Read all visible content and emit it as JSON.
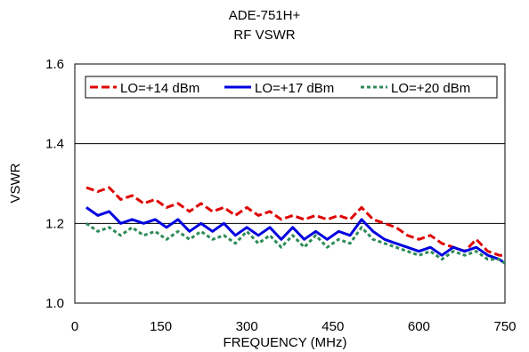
{
  "chart_data": {
    "type": "line",
    "title": "ADE-751H+",
    "subtitle": "RF VSWR",
    "xlabel": "FREQUENCY (MHz)",
    "ylabel": "VSWR",
    "xlim": [
      0,
      750
    ],
    "ylim": [
      1.0,
      1.6
    ],
    "xticks": [
      0,
      150,
      300,
      450,
      600,
      750
    ],
    "yticks": [
      1.0,
      1.2,
      1.4,
      1.6
    ],
    "xtick_labels": [
      "0",
      "150",
      "300",
      "450",
      "600",
      "750"
    ],
    "ytick_labels": [
      "1.0",
      "1.2",
      "1.4",
      "1.6"
    ],
    "grid": "horizontal",
    "legend_position": "top",
    "x": [
      20,
      40,
      60,
      80,
      100,
      120,
      140,
      160,
      180,
      200,
      220,
      240,
      260,
      280,
      300,
      320,
      340,
      360,
      380,
      400,
      420,
      440,
      460,
      480,
      500,
      520,
      540,
      560,
      580,
      600,
      620,
      640,
      660,
      680,
      700,
      720,
      740,
      750
    ],
    "series": [
      {
        "name": "LO=+14 dBm",
        "color": "#e00000",
        "dash": "dashed",
        "values": [
          1.29,
          1.28,
          1.29,
          1.26,
          1.27,
          1.25,
          1.26,
          1.24,
          1.25,
          1.23,
          1.25,
          1.23,
          1.24,
          1.22,
          1.24,
          1.22,
          1.23,
          1.21,
          1.22,
          1.21,
          1.22,
          1.21,
          1.22,
          1.21,
          1.24,
          1.21,
          1.2,
          1.19,
          1.17,
          1.16,
          1.17,
          1.15,
          1.14,
          1.13,
          1.16,
          1.13,
          1.12,
          1.12
        ]
      },
      {
        "name": "LO=+17 dBm",
        "color": "#0000e0",
        "dash": "solid",
        "values": [
          1.24,
          1.22,
          1.23,
          1.2,
          1.21,
          1.2,
          1.21,
          1.19,
          1.21,
          1.18,
          1.2,
          1.18,
          1.2,
          1.17,
          1.19,
          1.17,
          1.19,
          1.16,
          1.19,
          1.16,
          1.18,
          1.16,
          1.18,
          1.17,
          1.21,
          1.18,
          1.16,
          1.15,
          1.14,
          1.13,
          1.14,
          1.12,
          1.14,
          1.13,
          1.14,
          1.12,
          1.11,
          1.1
        ]
      },
      {
        "name": "LO=+20 dBm",
        "color": "#2e8b57",
        "dash": "dotted",
        "values": [
          1.2,
          1.18,
          1.19,
          1.17,
          1.19,
          1.17,
          1.18,
          1.16,
          1.18,
          1.16,
          1.18,
          1.16,
          1.17,
          1.15,
          1.18,
          1.15,
          1.17,
          1.14,
          1.17,
          1.14,
          1.17,
          1.14,
          1.16,
          1.15,
          1.19,
          1.16,
          1.15,
          1.14,
          1.13,
          1.12,
          1.13,
          1.11,
          1.13,
          1.12,
          1.13,
          1.11,
          1.11,
          1.1
        ]
      }
    ]
  }
}
